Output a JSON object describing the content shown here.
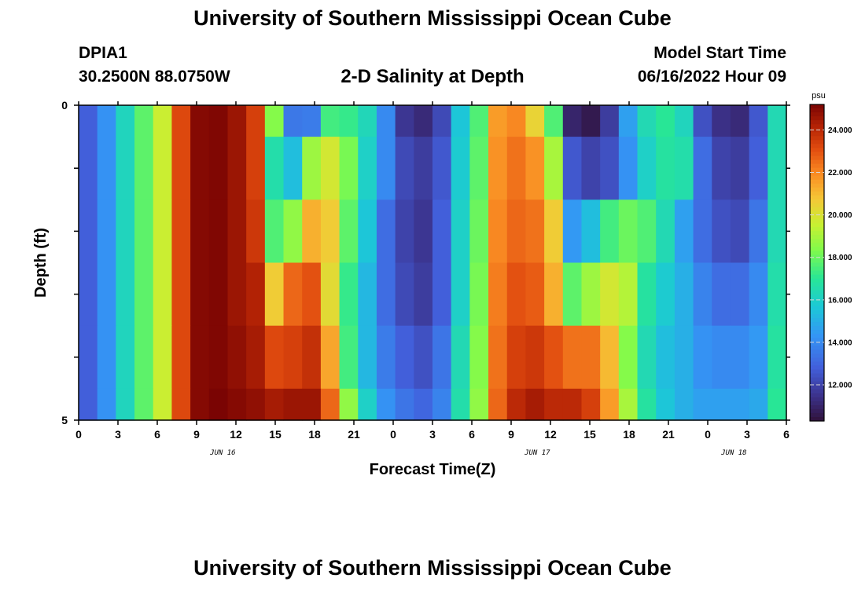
{
  "header": {
    "title": "University of Southern Mississippi Ocean Cube",
    "station_id": "DPIA1",
    "coordinates": "30.2500N  88.0750W",
    "plot_title": "2-D Salinity at Depth",
    "model_start_label": "Model Start Time",
    "model_start_value": "06/16/2022 Hour 09"
  },
  "footer": {
    "title": "University of Southern Mississippi Ocean Cube"
  },
  "chart_data": {
    "type": "heatmap",
    "title": "2-D Salinity at Depth",
    "xlabel": "Forecast Time(Z)",
    "ylabel": "Depth (ft)",
    "x_hours": [
      0,
      3,
      6,
      9,
      12,
      15,
      18,
      21,
      24,
      27,
      30,
      33,
      36,
      39,
      42,
      45,
      48,
      51,
      54
    ],
    "x_tick_labels": [
      "0",
      "3",
      "6",
      "9",
      "12",
      "15",
      "18",
      "21",
      "0",
      "3",
      "6",
      "9",
      "12",
      "15",
      "18",
      "21",
      "0",
      "3",
      "6"
    ],
    "date_labels": [
      {
        "text": "JUN 16",
        "hour": 11
      },
      {
        "text": "JUN 17",
        "hour": 35
      },
      {
        "text": "JUN 18",
        "hour": 50
      }
    ],
    "xlim": [
      0,
      54
    ],
    "ylim": [
      0,
      5
    ],
    "y_tick_labels": [
      "0",
      "5"
    ],
    "y_ticks": [
      0,
      1,
      2,
      3,
      4,
      5
    ],
    "y_inverted": true,
    "depth_rows": [
      {
        "depth_top": 0.0,
        "depth_bottom": 0.5,
        "values": [
          12.8,
          14.2,
          16.2,
          17.8,
          19.6,
          23.2,
          25.0,
          25.1,
          24.6,
          23.4,
          18.4,
          13.5,
          13.6,
          17.4,
          17.2,
          16.3,
          14.0,
          11.6,
          11.2,
          12.2,
          15.6,
          17.6,
          21.6,
          22.0,
          20.4,
          17.6,
          11.0,
          10.6,
          11.8,
          14.6,
          16.4,
          17.0,
          16.2,
          12.4,
          11.4,
          11.2,
          12.6,
          16.4
        ]
      },
      {
        "depth_top": 0.5,
        "depth_bottom": 1.5,
        "values": [
          12.8,
          14.2,
          16.2,
          17.8,
          19.6,
          23.2,
          25.0,
          25.1,
          24.6,
          23.4,
          16.6,
          15.4,
          18.8,
          19.8,
          18.2,
          16.0,
          14.0,
          12.2,
          11.8,
          12.6,
          15.8,
          17.8,
          21.8,
          22.4,
          21.8,
          19.0,
          12.6,
          12.0,
          12.4,
          14.2,
          16.0,
          16.8,
          16.6,
          13.2,
          12.0,
          11.8,
          12.8,
          16.4
        ]
      },
      {
        "depth_top": 1.5,
        "depth_bottom": 2.5,
        "values": [
          12.8,
          14.2,
          16.2,
          17.8,
          19.6,
          23.2,
          25.0,
          25.1,
          24.6,
          23.6,
          17.6,
          18.6,
          21.2,
          20.6,
          17.8,
          15.6,
          13.2,
          12.0,
          11.6,
          12.8,
          16.0,
          18.0,
          22.0,
          22.6,
          22.4,
          20.6,
          14.4,
          15.4,
          17.4,
          18.0,
          17.6,
          16.4,
          14.6,
          13.2,
          12.4,
          12.2,
          13.4,
          16.4
        ]
      },
      {
        "depth_top": 2.5,
        "depth_bottom": 3.5,
        "values": [
          12.8,
          14.2,
          16.2,
          17.8,
          19.6,
          23.2,
          25.0,
          25.1,
          24.6,
          24.2,
          20.6,
          22.6,
          23.0,
          20.2,
          17.2,
          15.2,
          13.2,
          12.2,
          11.8,
          12.8,
          16.0,
          18.2,
          22.2,
          23.0,
          22.8,
          21.2,
          17.8,
          18.8,
          19.8,
          19.2,
          16.8,
          15.8,
          15.0,
          13.8,
          13.2,
          13.2,
          14.0,
          16.6
        ]
      },
      {
        "depth_top": 3.5,
        "depth_bottom": 4.5,
        "values": [
          12.8,
          14.2,
          16.2,
          17.8,
          19.6,
          23.2,
          25.0,
          25.1,
          24.8,
          24.4,
          23.2,
          23.4,
          23.8,
          21.4,
          17.4,
          15.2,
          13.6,
          12.8,
          12.4,
          13.4,
          16.4,
          18.4,
          22.4,
          23.4,
          23.6,
          23.0,
          22.4,
          22.4,
          21.0,
          18.4,
          16.4,
          15.4,
          15.0,
          14.2,
          14.0,
          14.0,
          14.4,
          16.8
        ]
      },
      {
        "depth_top": 4.5,
        "depth_bottom": 5.0,
        "values": [
          12.8,
          14.2,
          16.2,
          17.8,
          19.6,
          23.2,
          25.0,
          25.2,
          25.0,
          24.8,
          24.4,
          24.6,
          24.6,
          22.6,
          18.6,
          16.0,
          14.2,
          13.4,
          13.0,
          13.8,
          16.6,
          18.6,
          22.6,
          24.0,
          24.4,
          24.0,
          24.0,
          23.4,
          21.6,
          19.0,
          16.8,
          15.6,
          15.0,
          14.6,
          14.6,
          14.6,
          14.8,
          17.0
        ]
      }
    ],
    "colorbar": {
      "unit": "psu",
      "min": 10.3,
      "max": 25.2,
      "tick_values": [
        12,
        14,
        16,
        18,
        20,
        22,
        24
      ],
      "tick_labels": [
        "12.000",
        "14.000",
        "16.000",
        "18.000",
        "20.000",
        "22.000",
        "24.000"
      ]
    },
    "grid": false
  }
}
